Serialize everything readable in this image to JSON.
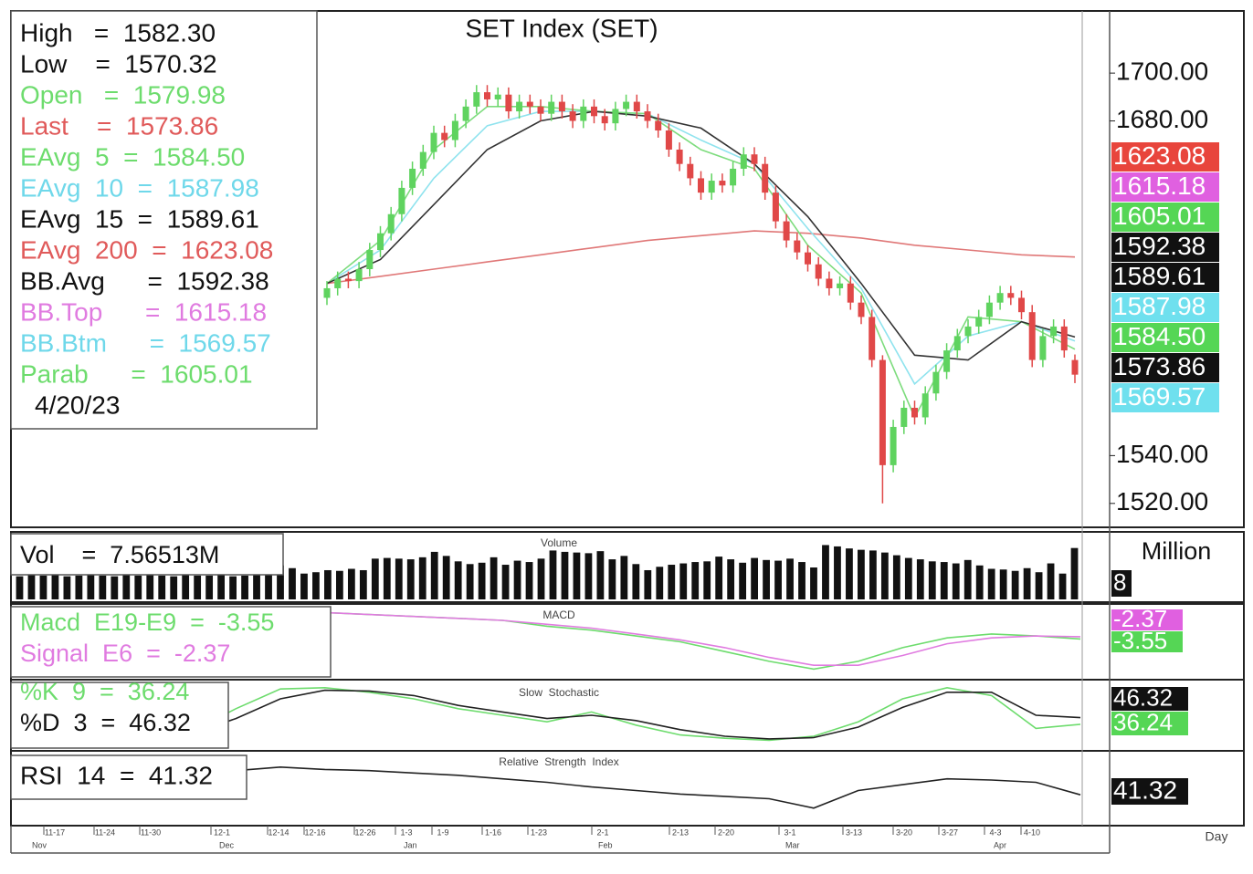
{
  "chart_data": [
    {
      "type": "candlestick",
      "title": "SET Index (SET)",
      "ylim": [
        1510,
        1726
      ],
      "yticks": [
        {
          "value": 1520,
          "label": "1520.00"
        },
        {
          "value": 1540,
          "label": "1540.00"
        },
        {
          "value": 1680,
          "label": "1680.00"
        },
        {
          "value": 1700,
          "label": "1700.00"
        }
      ],
      "up_color": "#5fd35f",
      "down_color": "#e04848",
      "open": [
        1606,
        1610,
        1614,
        1613,
        1618,
        1626,
        1633,
        1641,
        1652,
        1660,
        1667,
        1675,
        1672,
        1680,
        1686,
        1692,
        1689,
        1691,
        1684,
        1688,
        1686,
        1683,
        1688,
        1684,
        1680,
        1686,
        1682,
        1679,
        1685,
        1688,
        1684,
        1680,
        1676,
        1668,
        1662,
        1656,
        1650,
        1655,
        1653,
        1660,
        1666,
        1662,
        1650,
        1638,
        1630,
        1625,
        1620,
        1614,
        1610,
        1612,
        1604,
        1598,
        1580,
        1536,
        1552,
        1560,
        1556,
        1566,
        1575,
        1584,
        1590,
        1594,
        1598,
        1604,
        1608,
        1606,
        1600,
        1580,
        1590,
        1594,
        1579.98
      ],
      "high": [
        1613,
        1617,
        1617,
        1621,
        1629,
        1636,
        1644,
        1655,
        1663,
        1670,
        1678,
        1678,
        1683,
        1689,
        1695,
        1695,
        1694,
        1694,
        1691,
        1691,
        1689,
        1691,
        1691,
        1687,
        1689,
        1689,
        1685,
        1688,
        1691,
        1691,
        1687,
        1683,
        1679,
        1671,
        1665,
        1659,
        1658,
        1658,
        1663,
        1669,
        1669,
        1665,
        1653,
        1641,
        1633,
        1628,
        1623,
        1617,
        1615,
        1615,
        1607,
        1601,
        1582,
        1555,
        1563,
        1563,
        1569,
        1578,
        1587,
        1593,
        1597,
        1601,
        1607,
        1611,
        1611,
        1609,
        1603,
        1593,
        1597,
        1597,
        1582.3
      ],
      "low": [
        1603,
        1607,
        1610,
        1610,
        1615,
        1623,
        1630,
        1638,
        1649,
        1657,
        1664,
        1669,
        1669,
        1677,
        1683,
        1686,
        1686,
        1681,
        1681,
        1683,
        1680,
        1680,
        1681,
        1677,
        1677,
        1679,
        1676,
        1676,
        1682,
        1681,
        1677,
        1673,
        1665,
        1659,
        1653,
        1647,
        1647,
        1650,
        1650,
        1657,
        1659,
        1647,
        1635,
        1627,
        1622,
        1617,
        1611,
        1607,
        1607,
        1601,
        1595,
        1577,
        1520,
        1533,
        1549,
        1553,
        1553,
        1563,
        1572,
        1581,
        1587,
        1591,
        1595,
        1601,
        1603,
        1597,
        1577,
        1577,
        1587,
        1581,
        1570.32
      ],
      "close": [
        1610,
        1614,
        1613,
        1618,
        1626,
        1633,
        1641,
        1652,
        1660,
        1667,
        1675,
        1672,
        1680,
        1686,
        1692,
        1689,
        1691,
        1684,
        1688,
        1686,
        1683,
        1688,
        1684,
        1680,
        1686,
        1682,
        1679,
        1685,
        1688,
        1684,
        1680,
        1676,
        1668,
        1662,
        1656,
        1650,
        1655,
        1653,
        1660,
        1666,
        1662,
        1650,
        1638,
        1630,
        1625,
        1620,
        1614,
        1610,
        1612,
        1604,
        1598,
        1580,
        1536,
        1552,
        1560,
        1556,
        1566,
        1575,
        1584,
        1590,
        1594,
        1598,
        1604,
        1608,
        1606,
        1600,
        1580,
        1590,
        1594,
        1584,
        1573.86
      ],
      "series": [
        {
          "color": "#e07878",
          "x": [
            0,
            5,
            10,
            15,
            20,
            25,
            30,
            35,
            40,
            45,
            50,
            55,
            60,
            65,
            70
          ],
          "values": [
            1612,
            1615,
            1618,
            1621,
            1624,
            1627,
            1630,
            1632,
            1634,
            1633,
            1631,
            1628,
            1626,
            1624,
            1623.08
          ]
        },
        {
          "color": "#8fe3ee",
          "x": [
            0,
            5,
            10,
            15,
            20,
            25,
            30,
            35,
            40,
            45,
            50,
            55,
            60,
            65,
            70
          ],
          "values": [
            1612,
            1626,
            1656,
            1678,
            1684,
            1684,
            1683,
            1672,
            1662,
            1635,
            1610,
            1570,
            1590,
            1596,
            1587.98
          ]
        },
        {
          "color": "#7ddc7d",
          "x": [
            0,
            5,
            10,
            15,
            20,
            25,
            30,
            35,
            40,
            45,
            50,
            55,
            60,
            65,
            70
          ],
          "values": [
            1612,
            1630,
            1668,
            1686,
            1686,
            1684,
            1683,
            1668,
            1660,
            1628,
            1608,
            1556,
            1598,
            1596,
            1584.5
          ]
        },
        {
          "color": "#333333",
          "x": [
            0,
            5,
            10,
            15,
            20,
            25,
            30,
            35,
            40,
            45,
            50,
            55,
            60,
            65,
            70
          ],
          "values": [
            1612,
            1622,
            1645,
            1668,
            1680,
            1684,
            1682,
            1677,
            1662,
            1640,
            1612,
            1582,
            1580,
            1596,
            1589.61
          ]
        }
      ],
      "legend": [
        {
          "text": "High   =  1582.30",
          "color": "#111111"
        },
        {
          "text": "Low    =  1570.32",
          "color": "#111111"
        },
        {
          "text": "Open   =  1579.98",
          "color": "#6ddc6d"
        },
        {
          "text": "Last    =  1573.86",
          "color": "#e05a5a"
        },
        {
          "text": "EAvg  5  =  1584.50",
          "color": "#6ddc6d"
        },
        {
          "text": "EAvg  10  =  1587.98",
          "color": "#6fd8ea"
        },
        {
          "text": "EAvg  15  =  1589.61",
          "color": "#111111"
        },
        {
          "text": "EAvg  200  =  1623.08",
          "color": "#e05a5a"
        },
        {
          "text": "BB.Avg      =  1592.38",
          "color": "#111111"
        },
        {
          "text": "BB.Top      =  1615.18",
          "color": "#e07be0"
        },
        {
          "text": "BB.Btm      =  1569.57",
          "color": "#6fd8ea"
        },
        {
          "text": "Parab      =  1605.01",
          "color": "#6ddc6d"
        }
      ],
      "date": "4/20/23",
      "value_tags": [
        {
          "label": "1623.08",
          "color": "#e8453c",
          "text_color": "#ffffff"
        },
        {
          "label": "1615.18",
          "color": "#e060e0",
          "text_color": "#ffffff"
        },
        {
          "label": "1605.01",
          "color": "#55d655",
          "text_color": "#ffffff"
        },
        {
          "label": "1592.38",
          "color": "#111111",
          "text_color": "#ffffff"
        },
        {
          "label": "1589.61",
          "color": "#111111",
          "text_color": "#ffffff"
        },
        {
          "label": "1587.98",
          "color": "#6fe0ee",
          "text_color": "#ffffff"
        },
        {
          "label": "1584.50",
          "color": "#55d655",
          "text_color": "#ffffff"
        },
        {
          "label": "1573.86",
          "color": "#111111",
          "text_color": "#ffffff"
        },
        {
          "label": "1569.57",
          "color": "#6fe0ee",
          "text_color": "#ffffff"
        }
      ]
    },
    {
      "type": "bar",
      "title": "Volume",
      "axis_label": "Million",
      "ylim": [
        0,
        9
      ],
      "color": "#111111",
      "values": [
        3.4,
        3.6,
        3.5,
        3.7,
        3.4,
        3.5,
        3.6,
        3.5,
        3.4,
        3.6,
        3.5,
        3.7,
        3.5,
        3.4,
        3.6,
        3.5,
        3.5,
        3.6,
        3.4,
        3.5,
        6.2,
        5.8,
        5.0,
        4.6,
        3.8,
        4.0,
        4.3,
        4.2,
        4.5,
        4.3,
        6.0,
        6.1,
        6.0,
        5.9,
        6.2,
        7.0,
        6.4,
        5.6,
        5.2,
        5.4,
        6.2,
        5.1,
        5.7,
        5.5,
        6.0,
        7.2,
        7.0,
        6.9,
        6.8,
        7.1,
        5.9,
        6.4,
        5.2,
        4.3,
        4.8,
        5.1,
        5.3,
        5.5,
        5.6,
        6.3,
        5.9,
        5.4,
        6.1,
        5.8,
        5.7,
        6.0,
        5.5,
        4.7,
        8.0,
        7.8,
        7.5,
        7.3,
        7.2,
        6.9,
        6.5,
        6.1,
        5.9,
        5.6,
        5.5,
        5.3,
        5.8,
        5.0,
        4.5,
        4.4,
        4.2,
        4.6,
        4.0,
        5.3,
        3.8,
        7.56513
      ],
      "legend": [
        {
          "text": "Vol    =  7.56513M",
          "color": "#111111"
        }
      ],
      "value_tags": [
        {
          "label": "8",
          "color": "#111111",
          "text_color": "#ffffff"
        }
      ]
    },
    {
      "type": "line",
      "title": "MACD",
      "ylim": [
        -23,
        13
      ],
      "series": [
        {
          "color": "#6ddc6d",
          "values": [
            -2,
            0,
            3,
            6,
            8,
            10,
            11,
            10,
            9,
            8,
            7,
            6,
            3,
            1,
            -2,
            -5,
            -10,
            -15,
            -19,
            -15,
            -8,
            -3,
            -1,
            -2,
            -3.55
          ]
        },
        {
          "color": "#e07be0",
          "values": [
            -3,
            -1,
            2,
            5,
            7,
            9,
            10,
            10,
            9,
            8,
            7,
            6,
            4,
            2,
            -1,
            -4,
            -8,
            -13,
            -17,
            -17,
            -12,
            -6,
            -3,
            -2,
            -2.37
          ]
        }
      ],
      "legend": [
        {
          "text": "Macd  E19-E9  =  -3.55",
          "color": "#6ddc6d"
        },
        {
          "text": "Signal  E6  =  -2.37",
          "color": "#e07be0"
        }
      ],
      "value_tags": [
        {
          "label": "-2.37",
          "color": "#e060e0",
          "text_color": "#ffffff"
        },
        {
          "label": "-3.55",
          "color": "#55d655",
          "text_color": "#ffffff"
        }
      ]
    },
    {
      "type": "line",
      "title": "Slow  Stochastic",
      "ylim": [
        0,
        100
      ],
      "series": [
        {
          "color": "#6ddc6d",
          "values": [
            50,
            30,
            20,
            15,
            25,
            60,
            90,
            92,
            85,
            75,
            60,
            50,
            40,
            55,
            35,
            20,
            15,
            12,
            18,
            40,
            75,
            92,
            80,
            30,
            36.24
          ]
        },
        {
          "color": "#222222",
          "values": [
            50,
            40,
            28,
            20,
            22,
            45,
            75,
            88,
            87,
            80,
            65,
            55,
            45,
            50,
            42,
            28,
            18,
            14,
            16,
            32,
            62,
            85,
            85,
            50,
            46.32
          ]
        }
      ],
      "legend": [
        {
          "text": "%K  9  =  36.24",
          "color": "#6ddc6d"
        },
        {
          "text": "%D  3  =  46.32",
          "color": "#111111"
        }
      ],
      "value_tags": [
        {
          "label": "46.32",
          "color": "#111111",
          "text_color": "#ffffff"
        },
        {
          "label": "36.24",
          "color": "#55d655",
          "text_color": "#ffffff"
        }
      ]
    },
    {
      "type": "line",
      "title": "Relative  Strength  Index",
      "ylim": [
        15,
        75
      ],
      "series": [
        {
          "color": "#222222",
          "values": [
            45,
            48,
            50,
            52,
            58,
            62,
            65,
            63,
            62,
            60,
            58,
            55,
            52,
            48,
            45,
            42,
            40,
            38,
            30,
            45,
            50,
            55,
            54,
            52,
            41.32
          ]
        }
      ],
      "legend": [
        {
          "text": "RSI  14  =  41.32",
          "color": "#111111"
        }
      ],
      "value_tags": [
        {
          "label": "41.32",
          "color": "#111111",
          "text_color": "#ffffff"
        }
      ]
    }
  ],
  "date_axis": {
    "days": [
      "11-17",
      "11-24",
      "11-30",
      "12-1",
      "12-14",
      "12-16",
      "12-26",
      "1-3",
      "1-9",
      "1-16",
      "1-23",
      "2-1",
      "2-13",
      "2-20",
      "3-1",
      "3-13",
      "3-20",
      "3-27",
      "4-3",
      "4-10"
    ],
    "months": [
      "Nov",
      "Dec",
      "Jan",
      "Feb",
      "Mar",
      "Apr"
    ],
    "label": "Day"
  }
}
